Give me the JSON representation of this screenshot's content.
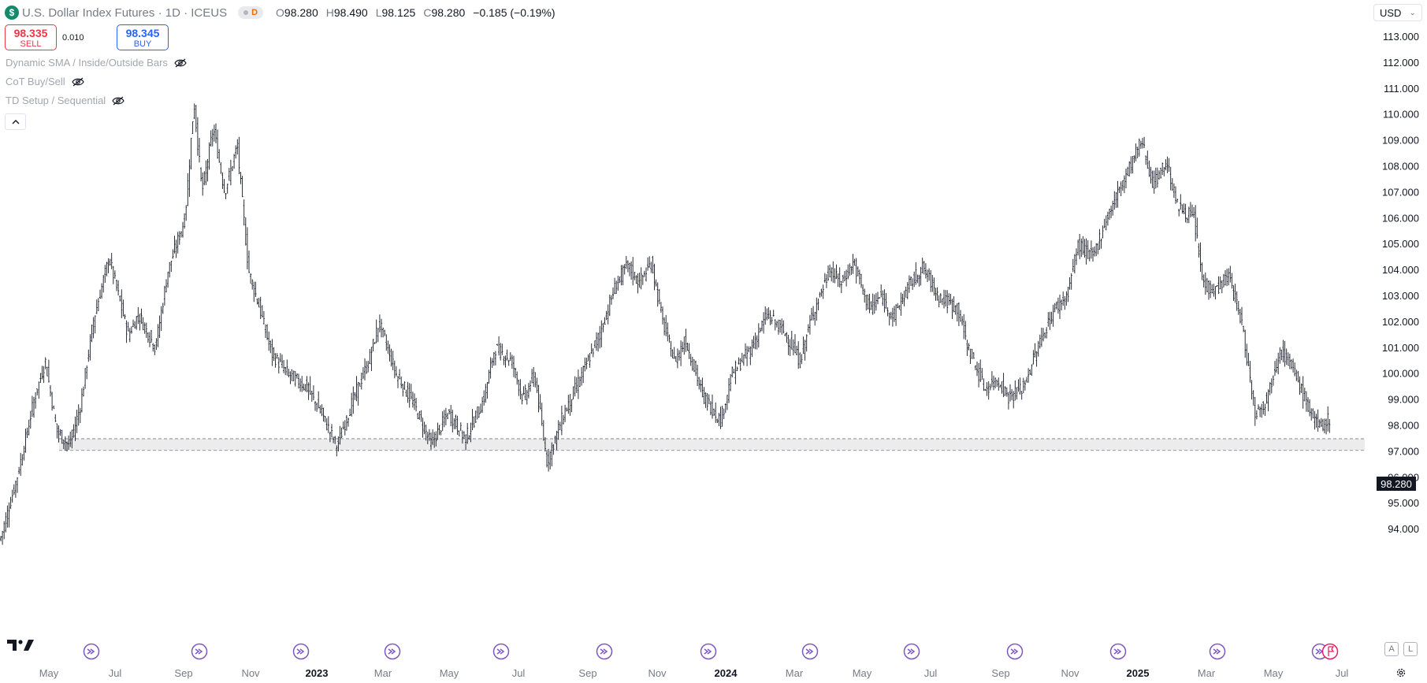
{
  "header": {
    "title": "U.S. Dollar Index Futures · 1D · ICEUS",
    "symbol_icon": "$",
    "session_badge": "D",
    "ohlc": {
      "o_key": "O",
      "o_val": "98.280",
      "h_key": "H",
      "h_val": "98.490",
      "l_key": "L",
      "l_val": "98.125",
      "c_key": "C",
      "c_val": "98.280",
      "change": "−0.185 (−0.19%)"
    }
  },
  "trade": {
    "sell_price": "98.335",
    "sell_label": "SELL",
    "spread": "0.010",
    "buy_price": "98.345",
    "buy_label": "BUY"
  },
  "indicators": [
    {
      "label": "Dynamic SMA / Inside/Outside Bars"
    },
    {
      "label": "CoT Buy/Sell"
    },
    {
      "label": "TD Setup / Sequential"
    }
  ],
  "currency": "USD",
  "last_price": "98.280",
  "colors": {
    "sell": "#f23645",
    "buy": "#2962ff",
    "event": "#7e57c2",
    "zone": "#e0e0e0"
  },
  "icons": [
    "dollar-icon",
    "eye-off-icon",
    "chevron-up-icon",
    "chevron-down-icon",
    "tradingview-logo-icon",
    "event-arrow-icon",
    "settings-icon"
  ],
  "bottom_buttons": {
    "auto": "A",
    "log": "L"
  },
  "chart_data": {
    "type": "ohlc-bar",
    "price_axis": {
      "min": 93,
      "max": 113,
      "ticks": [
        "113.000",
        "112.000",
        "111.000",
        "110.000",
        "109.000",
        "108.000",
        "107.000",
        "106.000",
        "105.000",
        "104.000",
        "103.000",
        "102.000",
        "101.000",
        "100.000",
        "99.000",
        "98.000",
        "97.000",
        "96.000",
        "95.000",
        "94.000"
      ]
    },
    "time_axis": {
      "labels": [
        "May",
        "Jul",
        "Sep",
        "Nov",
        "2023",
        "Mar",
        "May",
        "Jul",
        "Sep",
        "Nov",
        "2024",
        "Mar",
        "May",
        "Jul",
        "Sep",
        "Nov",
        "2025",
        "Mar",
        "May",
        "Jul"
      ],
      "bold_labels": [
        "2023",
        "2024",
        "2025"
      ]
    },
    "support_zone": {
      "low": 97.05,
      "high": 97.5
    },
    "series_path": [
      [
        "2022-04-10",
        93.6
      ],
      [
        "2022-04-25",
        96.0
      ],
      [
        "2022-05-10",
        99.0
      ],
      [
        "2022-05-20",
        100.5
      ],
      [
        "2022-05-30",
        97.8
      ],
      [
        "2022-06-10",
        97.2
      ],
      [
        "2022-06-20",
        98.8
      ],
      [
        "2022-07-01",
        102.0
      ],
      [
        "2022-07-15",
        104.5
      ],
      [
        "2022-08-01",
        101.5
      ],
      [
        "2022-08-10",
        102.3
      ],
      [
        "2022-08-25",
        101.0
      ],
      [
        "2022-09-05",
        104.0
      ],
      [
        "2022-09-20",
        106.0
      ],
      [
        "2022-09-28",
        110.5
      ],
      [
        "2022-10-05",
        107.0
      ],
      [
        "2022-10-15",
        109.5
      ],
      [
        "2022-10-25",
        107.0
      ],
      [
        "2022-11-05",
        108.8
      ],
      [
        "2022-11-15",
        104.0
      ],
      [
        "2022-11-25",
        102.5
      ],
      [
        "2022-12-05",
        100.8
      ],
      [
        "2022-12-20",
        100.0
      ],
      [
        "2023-01-05",
        99.5
      ],
      [
        "2023-01-18",
        98.5
      ],
      [
        "2023-02-01",
        97.2
      ],
      [
        "2023-02-15",
        99.0
      ],
      [
        "2023-03-01",
        100.5
      ],
      [
        "2023-03-10",
        102.0
      ],
      [
        "2023-03-25",
        100.0
      ],
      [
        "2023-04-10",
        98.8
      ],
      [
        "2023-04-25",
        97.3
      ],
      [
        "2023-05-10",
        98.5
      ],
      [
        "2023-05-25",
        97.5
      ],
      [
        "2023-06-10",
        99.0
      ],
      [
        "2023-06-20",
        101.0
      ],
      [
        "2023-07-05",
        100.5
      ],
      [
        "2023-07-15",
        99.0
      ],
      [
        "2023-07-25",
        100.0
      ],
      [
        "2023-08-05",
        96.6
      ],
      [
        "2023-08-20",
        98.5
      ],
      [
        "2023-09-05",
        100.0
      ],
      [
        "2023-09-20",
        101.5
      ],
      [
        "2023-10-05",
        103.5
      ],
      [
        "2023-10-15",
        104.2
      ],
      [
        "2023-10-25",
        103.5
      ],
      [
        "2023-11-05",
        104.3
      ],
      [
        "2023-11-15",
        102.0
      ],
      [
        "2023-11-25",
        100.5
      ],
      [
        "2023-12-05",
        101.3
      ],
      [
        "2023-12-20",
        99.2
      ],
      [
        "2024-01-05",
        98.2
      ],
      [
        "2024-01-15",
        100.0
      ],
      [
        "2024-02-01",
        101.0
      ],
      [
        "2024-02-15",
        102.3
      ],
      [
        "2024-03-01",
        101.6
      ],
      [
        "2024-03-15",
        100.5
      ],
      [
        "2024-03-25",
        102.2
      ],
      [
        "2024-04-10",
        104.0
      ],
      [
        "2024-04-20",
        103.5
      ],
      [
        "2024-05-01",
        104.3
      ],
      [
        "2024-05-15",
        102.5
      ],
      [
        "2024-05-25",
        103.0
      ],
      [
        "2024-06-05",
        102.2
      ],
      [
        "2024-06-20",
        103.5
      ],
      [
        "2024-07-01",
        104.1
      ],
      [
        "2024-07-15",
        103.0
      ],
      [
        "2024-08-01",
        102.5
      ],
      [
        "2024-08-10",
        101.0
      ],
      [
        "2024-08-25",
        99.4
      ],
      [
        "2024-09-05",
        99.8
      ],
      [
        "2024-09-15",
        99.1
      ],
      [
        "2024-09-28",
        99.5
      ],
      [
        "2024-10-10",
        101.0
      ],
      [
        "2024-10-25",
        102.5
      ],
      [
        "2024-11-05",
        103.0
      ],
      [
        "2024-11-15",
        105.0
      ],
      [
        "2024-11-28",
        104.5
      ],
      [
        "2024-12-10",
        106.0
      ],
      [
        "2024-12-25",
        107.5
      ],
      [
        "2025-01-10",
        109.0
      ],
      [
        "2025-01-20",
        107.3
      ],
      [
        "2025-02-01",
        108.2
      ],
      [
        "2025-02-10",
        106.5
      ],
      [
        "2025-02-25",
        106.0
      ],
      [
        "2025-03-05",
        103.5
      ],
      [
        "2025-03-15",
        103.2
      ],
      [
        "2025-03-28",
        103.8
      ],
      [
        "2025-04-08",
        102.0
      ],
      [
        "2025-04-20",
        98.5
      ],
      [
        "2025-04-30",
        99.0
      ],
      [
        "2025-05-12",
        101.0
      ],
      [
        "2025-05-25",
        100.0
      ],
      [
        "2025-06-05",
        98.8
      ],
      [
        "2025-06-15",
        97.9
      ],
      [
        "2025-06-25",
        98.3
      ]
    ]
  }
}
